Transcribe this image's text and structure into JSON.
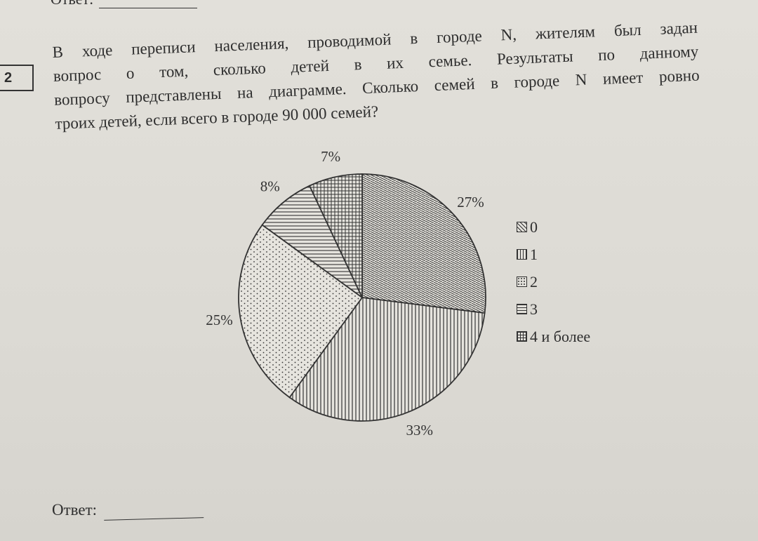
{
  "header": {
    "answer_label": "Ответ:"
  },
  "task": {
    "number": "2",
    "question_lines": [
      "В ходе переписи населения, проводимой в городе N, жителям был задан",
      "вопрос о том, сколько детей в их семье. Результаты по данному",
      "вопросу представлены на диаграмме. Сколько семей в городе N имеет ровно",
      "троих детей, если всего в городе 90 000 семей?"
    ]
  },
  "chart_data": {
    "type": "pie",
    "title": "",
    "categories": [
      "0",
      "1",
      "2",
      "3",
      "4 и более"
    ],
    "values": [
      27,
      33,
      25,
      8,
      7
    ],
    "value_labels": [
      "27%",
      "33%",
      "25%",
      "8%",
      "7%"
    ],
    "patterns": [
      "diagonal-hatch",
      "vertical-lines",
      "dots",
      "horizontal-lines",
      "grid"
    ],
    "start": "12 o'clock",
    "direction": "clockwise",
    "legend_position": "right"
  },
  "legend": {
    "items": [
      "0",
      "1",
      "2",
      "3",
      "4 и более"
    ]
  },
  "footer": {
    "answer_label": "Ответ:"
  }
}
